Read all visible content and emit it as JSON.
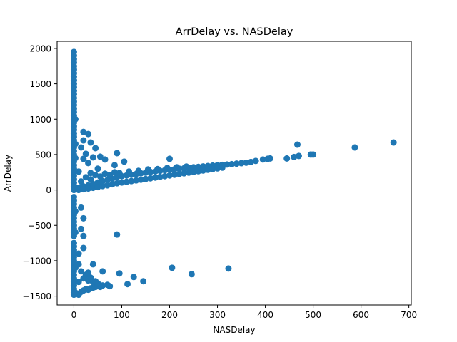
{
  "chart_data": {
    "type": "scatter",
    "title": "ArrDelay vs. NASDelay",
    "xlabel": "NASDelay",
    "ylabel": "ArrDelay",
    "xlim": [
      -35,
      705
    ],
    "ylim": [
      -1625,
      2100
    ],
    "xticks": [
      0,
      100,
      200,
      300,
      400,
      500,
      600,
      700
    ],
    "yticks": [
      -1500,
      -1000,
      -500,
      0,
      500,
      1000,
      1500,
      2000
    ],
    "xtick_labels": [
      "0",
      "100",
      "200",
      "300",
      "400",
      "500",
      "600",
      "700"
    ],
    "ytick_labels": [
      "−1500",
      "−1000",
      "−500",
      "0",
      "500",
      "1000",
      "1500",
      "2000"
    ],
    "grid": false,
    "marker_color": "#1f77b4",
    "points": [
      {
        "x": 0,
        "y": 1950
      },
      {
        "x": 0,
        "y": 1900
      },
      {
        "x": 0,
        "y": 1850
      },
      {
        "x": 0,
        "y": 1800
      },
      {
        "x": 0,
        "y": 1750
      },
      {
        "x": 0,
        "y": 1700
      },
      {
        "x": 0,
        "y": 1650
      },
      {
        "x": 0,
        "y": 1600
      },
      {
        "x": 0,
        "y": 1550
      },
      {
        "x": 0,
        "y": 1500
      },
      {
        "x": 0,
        "y": 1450
      },
      {
        "x": 0,
        "y": 1400
      },
      {
        "x": 0,
        "y": 1350
      },
      {
        "x": 0,
        "y": 1300
      },
      {
        "x": 0,
        "y": 1250
      },
      {
        "x": 0,
        "y": 1200
      },
      {
        "x": 0,
        "y": 1150
      },
      {
        "x": 0,
        "y": 1100
      },
      {
        "x": 0,
        "y": 1050
      },
      {
        "x": 0,
        "y": 1000
      },
      {
        "x": 0,
        "y": 950
      },
      {
        "x": 0,
        "y": 900
      },
      {
        "x": 0,
        "y": 850
      },
      {
        "x": 0,
        "y": 800
      },
      {
        "x": 0,
        "y": 750
      },
      {
        "x": 0,
        "y": 700
      },
      {
        "x": 0,
        "y": 650
      },
      {
        "x": 0,
        "y": 600
      },
      {
        "x": 0,
        "y": 550
      },
      {
        "x": 0,
        "y": 500
      },
      {
        "x": 0,
        "y": 450
      },
      {
        "x": 0,
        "y": 400
      },
      {
        "x": 0,
        "y": 350
      },
      {
        "x": 0,
        "y": 300
      },
      {
        "x": 0,
        "y": 250
      },
      {
        "x": 0,
        "y": 200
      },
      {
        "x": 0,
        "y": 150
      },
      {
        "x": 0,
        "y": 100
      },
      {
        "x": 0,
        "y": 50
      },
      {
        "x": 0,
        "y": 0
      },
      {
        "x": 0,
        "y": -100
      },
      {
        "x": 0,
        "y": -150
      },
      {
        "x": 0,
        "y": -200
      },
      {
        "x": 0,
        "y": -250
      },
      {
        "x": 0,
        "y": -300
      },
      {
        "x": 0,
        "y": -350
      },
      {
        "x": 0,
        "y": -400
      },
      {
        "x": 0,
        "y": -450
      },
      {
        "x": 0,
        "y": -500
      },
      {
        "x": 0,
        "y": -550
      },
      {
        "x": 0,
        "y": -600
      },
      {
        "x": 0,
        "y": -650
      },
      {
        "x": 0,
        "y": -750
      },
      {
        "x": 0,
        "y": -800
      },
      {
        "x": 0,
        "y": -850
      },
      {
        "x": 0,
        "y": -900
      },
      {
        "x": 0,
        "y": -950
      },
      {
        "x": 0,
        "y": -1000
      },
      {
        "x": 0,
        "y": -1050
      },
      {
        "x": 0,
        "y": -1100
      },
      {
        "x": 0,
        "y": -1150
      },
      {
        "x": 0,
        "y": -1200
      },
      {
        "x": 0,
        "y": -1250
      },
      {
        "x": 0,
        "y": -1300
      },
      {
        "x": 0,
        "y": -1350
      },
      {
        "x": 0,
        "y": -1400
      },
      {
        "x": 0,
        "y": -1450
      },
      {
        "x": 0,
        "y": -1480
      },
      {
        "x": 3,
        "y": 1000
      },
      {
        "x": 3,
        "y": 650
      },
      {
        "x": 3,
        "y": 450
      },
      {
        "x": 3,
        "y": -300
      },
      {
        "x": 3,
        "y": -600
      },
      {
        "x": 3,
        "y": -1100
      },
      {
        "x": 3,
        "y": -1450
      },
      {
        "x": 20,
        "y": 820
      },
      {
        "x": 30,
        "y": 790
      },
      {
        "x": 20,
        "y": 700
      },
      {
        "x": 35,
        "y": 670
      },
      {
        "x": 15,
        "y": 600
      },
      {
        "x": 45,
        "y": 590
      },
      {
        "x": 25,
        "y": 510
      },
      {
        "x": 55,
        "y": 470
      },
      {
        "x": 65,
        "y": 430
      },
      {
        "x": 90,
        "y": 520
      },
      {
        "x": 105,
        "y": 400
      },
      {
        "x": 85,
        "y": 350
      },
      {
        "x": 40,
        "y": 460
      },
      {
        "x": 20,
        "y": 440
      },
      {
        "x": 30,
        "y": 380
      },
      {
        "x": 50,
        "y": 300
      },
      {
        "x": 35,
        "y": 240
      },
      {
        "x": 10,
        "y": 260
      },
      {
        "x": 10,
        "y": 30
      },
      {
        "x": 20,
        "y": 50
      },
      {
        "x": 30,
        "y": 65
      },
      {
        "x": 40,
        "y": 85
      },
      {
        "x": 50,
        "y": 105
      },
      {
        "x": 60,
        "y": 125
      },
      {
        "x": 70,
        "y": 140
      },
      {
        "x": 80,
        "y": 160
      },
      {
        "x": 90,
        "y": 180
      },
      {
        "x": 100,
        "y": 195
      },
      {
        "x": 110,
        "y": 205
      },
      {
        "x": 120,
        "y": 215
      },
      {
        "x": 130,
        "y": 225
      },
      {
        "x": 140,
        "y": 235
      },
      {
        "x": 150,
        "y": 245
      },
      {
        "x": 160,
        "y": 255
      },
      {
        "x": 170,
        "y": 262
      },
      {
        "x": 180,
        "y": 270
      },
      {
        "x": 190,
        "y": 278
      },
      {
        "x": 200,
        "y": 285
      },
      {
        "x": 210,
        "y": 292
      },
      {
        "x": 220,
        "y": 300
      },
      {
        "x": 230,
        "y": 306
      },
      {
        "x": 240,
        "y": 313
      },
      {
        "x": 250,
        "y": 320
      },
      {
        "x": 260,
        "y": 326
      },
      {
        "x": 270,
        "y": 332
      },
      {
        "x": 280,
        "y": 338
      },
      {
        "x": 290,
        "y": 344
      },
      {
        "x": 300,
        "y": 350
      },
      {
        "x": 310,
        "y": 355
      },
      {
        "x": 320,
        "y": 360
      },
      {
        "x": 330,
        "y": 365
      },
      {
        "x": 340,
        "y": 372
      },
      {
        "x": 350,
        "y": 378
      },
      {
        "x": 360,
        "y": 385
      },
      {
        "x": 370,
        "y": 395
      },
      {
        "x": 380,
        "y": 410
      },
      {
        "x": 395,
        "y": 430
      },
      {
        "x": 405,
        "y": 440
      },
      {
        "x": 410,
        "y": 445
      },
      {
        "x": 445,
        "y": 445
      },
      {
        "x": 460,
        "y": 465
      },
      {
        "x": 470,
        "y": 480
      },
      {
        "x": 495,
        "y": 500
      },
      {
        "x": 500,
        "y": 500
      },
      {
        "x": 467,
        "y": 640
      },
      {
        "x": 587,
        "y": 600
      },
      {
        "x": 668,
        "y": 670
      },
      {
        "x": 200,
        "y": 440
      },
      {
        "x": 10,
        "y": 0
      },
      {
        "x": 20,
        "y": 10
      },
      {
        "x": 30,
        "y": 20
      },
      {
        "x": 40,
        "y": 30
      },
      {
        "x": 50,
        "y": 40
      },
      {
        "x": 60,
        "y": 55
      },
      {
        "x": 70,
        "y": 65
      },
      {
        "x": 80,
        "y": 80
      },
      {
        "x": 90,
        "y": 95
      },
      {
        "x": 100,
        "y": 105
      },
      {
        "x": 110,
        "y": 115
      },
      {
        "x": 120,
        "y": 125
      },
      {
        "x": 130,
        "y": 135
      },
      {
        "x": 140,
        "y": 145
      },
      {
        "x": 150,
        "y": 155
      },
      {
        "x": 160,
        "y": 165
      },
      {
        "x": 170,
        "y": 175
      },
      {
        "x": 180,
        "y": 185
      },
      {
        "x": 190,
        "y": 195
      },
      {
        "x": 200,
        "y": 205
      },
      {
        "x": 210,
        "y": 215
      },
      {
        "x": 220,
        "y": 225
      },
      {
        "x": 230,
        "y": 235
      },
      {
        "x": 240,
        "y": 245
      },
      {
        "x": 250,
        "y": 255
      },
      {
        "x": 260,
        "y": 265
      },
      {
        "x": 270,
        "y": 275
      },
      {
        "x": 280,
        "y": 285
      },
      {
        "x": 290,
        "y": 295
      },
      {
        "x": 300,
        "y": 305
      },
      {
        "x": 310,
        "y": 315
      },
      {
        "x": 15,
        "y": 120
      },
      {
        "x": 25,
        "y": 180
      },
      {
        "x": 35,
        "y": 150
      },
      {
        "x": 45,
        "y": 210
      },
      {
        "x": 55,
        "y": 190
      },
      {
        "x": 65,
        "y": 230
      },
      {
        "x": 75,
        "y": 210
      },
      {
        "x": 85,
        "y": 250
      },
      {
        "x": 95,
        "y": 240
      },
      {
        "x": 115,
        "y": 260
      },
      {
        "x": 135,
        "y": 270
      },
      {
        "x": 155,
        "y": 290
      },
      {
        "x": 175,
        "y": 295
      },
      {
        "x": 195,
        "y": 310
      },
      {
        "x": 215,
        "y": 320
      },
      {
        "x": 235,
        "y": 330
      },
      {
        "x": 15,
        "y": -250
      },
      {
        "x": 20,
        "y": -400
      },
      {
        "x": 15,
        "y": -550
      },
      {
        "x": 20,
        "y": -650
      },
      {
        "x": 90,
        "y": -630
      },
      {
        "x": 20,
        "y": -820
      },
      {
        "x": 10,
        "y": -900
      },
      {
        "x": 40,
        "y": -1050
      },
      {
        "x": 60,
        "y": -1150
      },
      {
        "x": 95,
        "y": -1180
      },
      {
        "x": 125,
        "y": -1230
      },
      {
        "x": 145,
        "y": -1290
      },
      {
        "x": 112,
        "y": -1330
      },
      {
        "x": 205,
        "y": -1100
      },
      {
        "x": 246,
        "y": -1190
      },
      {
        "x": 323,
        "y": -1110
      },
      {
        "x": 10,
        "y": -1480
      },
      {
        "x": 15,
        "y": -1440
      },
      {
        "x": 20,
        "y": -1420
      },
      {
        "x": 25,
        "y": -1400
      },
      {
        "x": 30,
        "y": -1410
      },
      {
        "x": 35,
        "y": -1390
      },
      {
        "x": 40,
        "y": -1380
      },
      {
        "x": 45,
        "y": -1370
      },
      {
        "x": 50,
        "y": -1360
      },
      {
        "x": 55,
        "y": -1370
      },
      {
        "x": 60,
        "y": -1350
      },
      {
        "x": 70,
        "y": -1340
      },
      {
        "x": 75,
        "y": -1360
      },
      {
        "x": 10,
        "y": -1300
      },
      {
        "x": 20,
        "y": -1250
      },
      {
        "x": 30,
        "y": -1280
      },
      {
        "x": 25,
        "y": -1200
      },
      {
        "x": 40,
        "y": -1300
      },
      {
        "x": 15,
        "y": -1150
      },
      {
        "x": 50,
        "y": -1320
      },
      {
        "x": 10,
        "y": -1050
      },
      {
        "x": 30,
        "y": -1170
      },
      {
        "x": 35,
        "y": -1240
      },
      {
        "x": 45,
        "y": -1290
      }
    ]
  }
}
